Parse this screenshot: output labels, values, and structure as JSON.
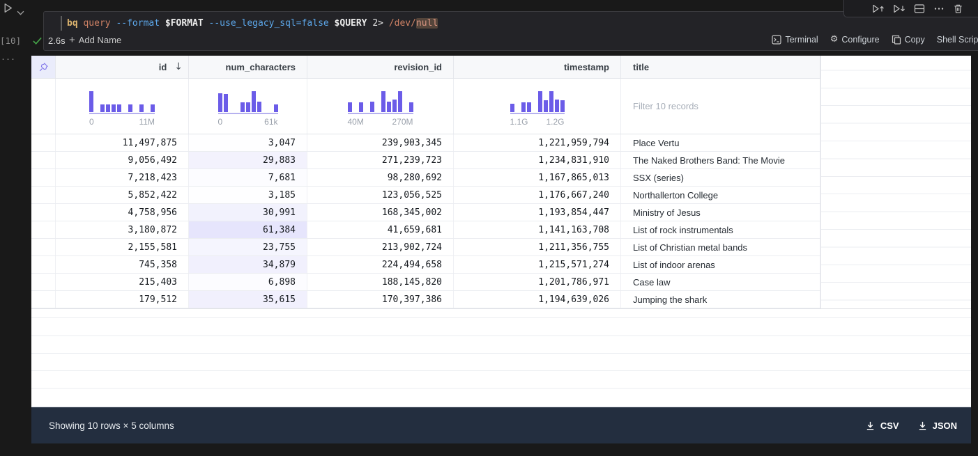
{
  "gutter": {
    "execution_count": "[10]",
    "more": "···"
  },
  "cell": {
    "code_tokens": [
      {
        "text": "bq",
        "style": "gold"
      },
      {
        "text": " ",
        "style": "plain"
      },
      {
        "text": "query",
        "style": "salmon"
      },
      {
        "text": " ",
        "style": "plain"
      },
      {
        "text": "--format",
        "style": "blue"
      },
      {
        "text": " ",
        "style": "plain"
      },
      {
        "text": "$FORMAT",
        "style": "var"
      },
      {
        "text": " ",
        "style": "plain"
      },
      {
        "text": "--use_legacy_sql=false",
        "style": "blue"
      },
      {
        "text": " ",
        "style": "plain"
      },
      {
        "text": "$QUERY",
        "style": "var"
      },
      {
        "text": " ",
        "style": "plain"
      },
      {
        "text": "2>",
        "style": "plain"
      },
      {
        "text": " ",
        "style": "plain"
      },
      {
        "text": "/dev/",
        "style": "salmon"
      },
      {
        "text": "null",
        "style": "salmon-hl"
      }
    ],
    "status": {
      "duration": "2.6s",
      "add_name": "Add Name"
    },
    "actions": {
      "terminal": "Terminal",
      "configure": "Configure",
      "copy": "Copy",
      "shell_script": "Shell Script"
    },
    "toolbar_icons": [
      "run-cell-and-above-icon",
      "run-cell-and-below-icon",
      "split-cell-icon",
      "more-actions-icon",
      "delete-cell-icon"
    ]
  },
  "table": {
    "corner_icon": "pin-icon",
    "columns": [
      {
        "label": "id",
        "align": "right",
        "sort": "desc"
      },
      {
        "label": "num_characters",
        "align": "right"
      },
      {
        "label": "revision_id",
        "align": "right"
      },
      {
        "label": "timestamp",
        "align": "right"
      },
      {
        "label": "title",
        "align": "left"
      }
    ],
    "filter_placeholder": "Filter 10 records",
    "rows": [
      [
        "11,497,875",
        "3,047",
        "239,903,345",
        "1,221,959,794",
        "Place Vertu"
      ],
      [
        "9,056,492",
        "29,883",
        "271,239,723",
        "1,234,831,910",
        "The Naked Brothers Band: The Movie"
      ],
      [
        "7,218,423",
        "7,681",
        "98,280,692",
        "1,167,865,013",
        "SSX (series)"
      ],
      [
        "5,852,422",
        "3,185",
        "123,056,525",
        "1,176,667,240",
        "Northallerton College"
      ],
      [
        "4,758,956",
        "30,991",
        "168,345,002",
        "1,193,854,447",
        "Ministry of Jesus"
      ],
      [
        "3,180,872",
        "61,384",
        "41,659,681",
        "1,141,163,708",
        "List of rock instrumentals"
      ],
      [
        "2,155,581",
        "23,755",
        "213,902,724",
        "1,211,356,755",
        "List of Christian metal bands"
      ],
      [
        "745,358",
        "34,879",
        "224,494,658",
        "1,215,571,274",
        "List of indoor arenas"
      ],
      [
        "215,403",
        "6,898",
        "188,145,820",
        "1,201,786,971",
        "Case law"
      ],
      [
        "179,512",
        "35,615",
        "170,397,386",
        "1,194,639,026",
        "Jumping the shark"
      ]
    ],
    "num_characters_values": [
      3047,
      29883,
      7681,
      3185,
      30991,
      61384,
      23755,
      34879,
      6898,
      35615
    ],
    "num_characters_max": 61384
  },
  "chart_data": [
    {
      "type": "histogram",
      "column": "id",
      "bins": [
        1,
        0,
        0.38,
        0.38,
        0.38,
        0.38,
        0,
        0.38,
        0,
        0.38,
        0,
        0.38
      ],
      "min_label": "0",
      "max_label": "11M"
    },
    {
      "type": "histogram",
      "column": "num_characters",
      "bins": [
        0.9,
        0.88,
        0,
        0,
        0.45,
        0.45,
        1,
        0.5,
        0,
        0,
        0.38
      ],
      "min_label": "0",
      "max_label": "61k"
    },
    {
      "type": "histogram",
      "column": "revision_id",
      "bins": [
        0.45,
        0,
        0.45,
        0,
        0.5,
        0,
        1,
        0.5,
        0.6,
        1,
        0,
        0.45
      ],
      "min_label": "40M",
      "max_label": "270M"
    },
    {
      "type": "histogram",
      "column": "timestamp",
      "bins": [
        0.4,
        0,
        0.45,
        0.45,
        0,
        1,
        0.55,
        1,
        0.6,
        0.55
      ],
      "min_label": "1.1G",
      "max_label": "1.2G"
    }
  ],
  "footer": {
    "summary": "Showing 10 rows × 5 columns",
    "csv_label": "CSV",
    "json_label": "JSON"
  },
  "colors": {
    "accent": "#6b5ce8",
    "bar": "#6b5ce8",
    "axis": "#b6b1ef",
    "cell_shade": "#6c63eb",
    "footer_bg": "#232e3f"
  }
}
